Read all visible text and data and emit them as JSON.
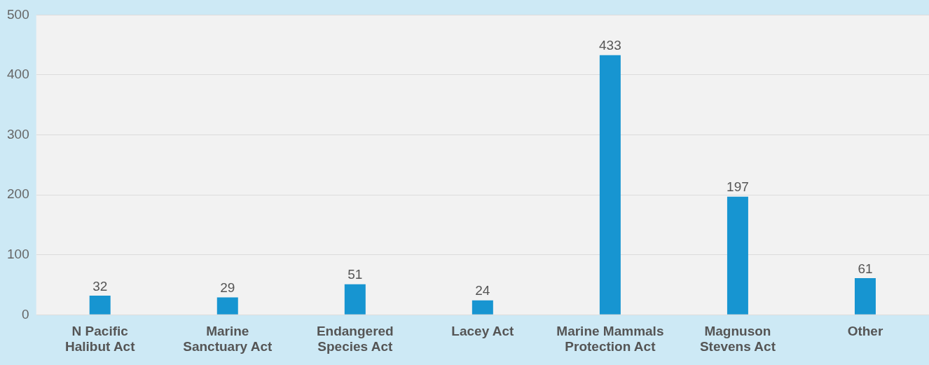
{
  "chart_data": {
    "type": "bar",
    "categories": [
      "N Pacific Halibut Act",
      "Marine Sanctuary Act",
      "Endangered Species Act",
      "Lacey Act",
      "Marine Mammals Protection Act",
      "Magnuson Stevens Act",
      "Other"
    ],
    "values": [
      32,
      29,
      51,
      24,
      433,
      197,
      61
    ],
    "color": "#1795d1",
    "ylim": [
      0,
      500
    ],
    "yticks": [
      0,
      100,
      200,
      300,
      400,
      500
    ],
    "grid": "y",
    "data_labels": true,
    "legend": false
  }
}
